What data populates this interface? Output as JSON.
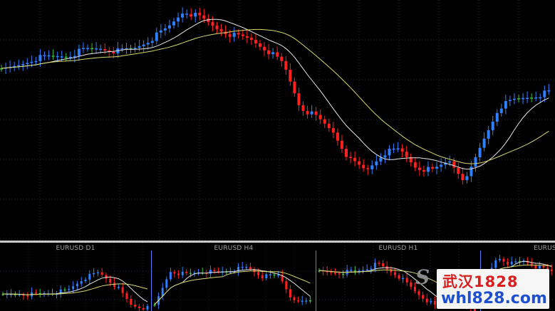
{
  "main": {
    "symbol_timeframe": "",
    "bull_color": "#2f7fff",
    "bear_color": "#ff2020",
    "doji_color": "#38c038",
    "ma_fast_color": "#e6e6e6",
    "ma_slow_color": "#d8d870",
    "grid_color": "#1e2a38"
  },
  "panels": [
    {
      "title": "EURUSD D1"
    },
    {
      "title": "EURUSD H4"
    },
    {
      "title": "EURUSD H1"
    },
    {
      "title": "EURUS"
    }
  ],
  "watermark": {
    "logo": "S",
    "top_text": "武汉1828",
    "bottom_text": "whl828.com"
  }
}
